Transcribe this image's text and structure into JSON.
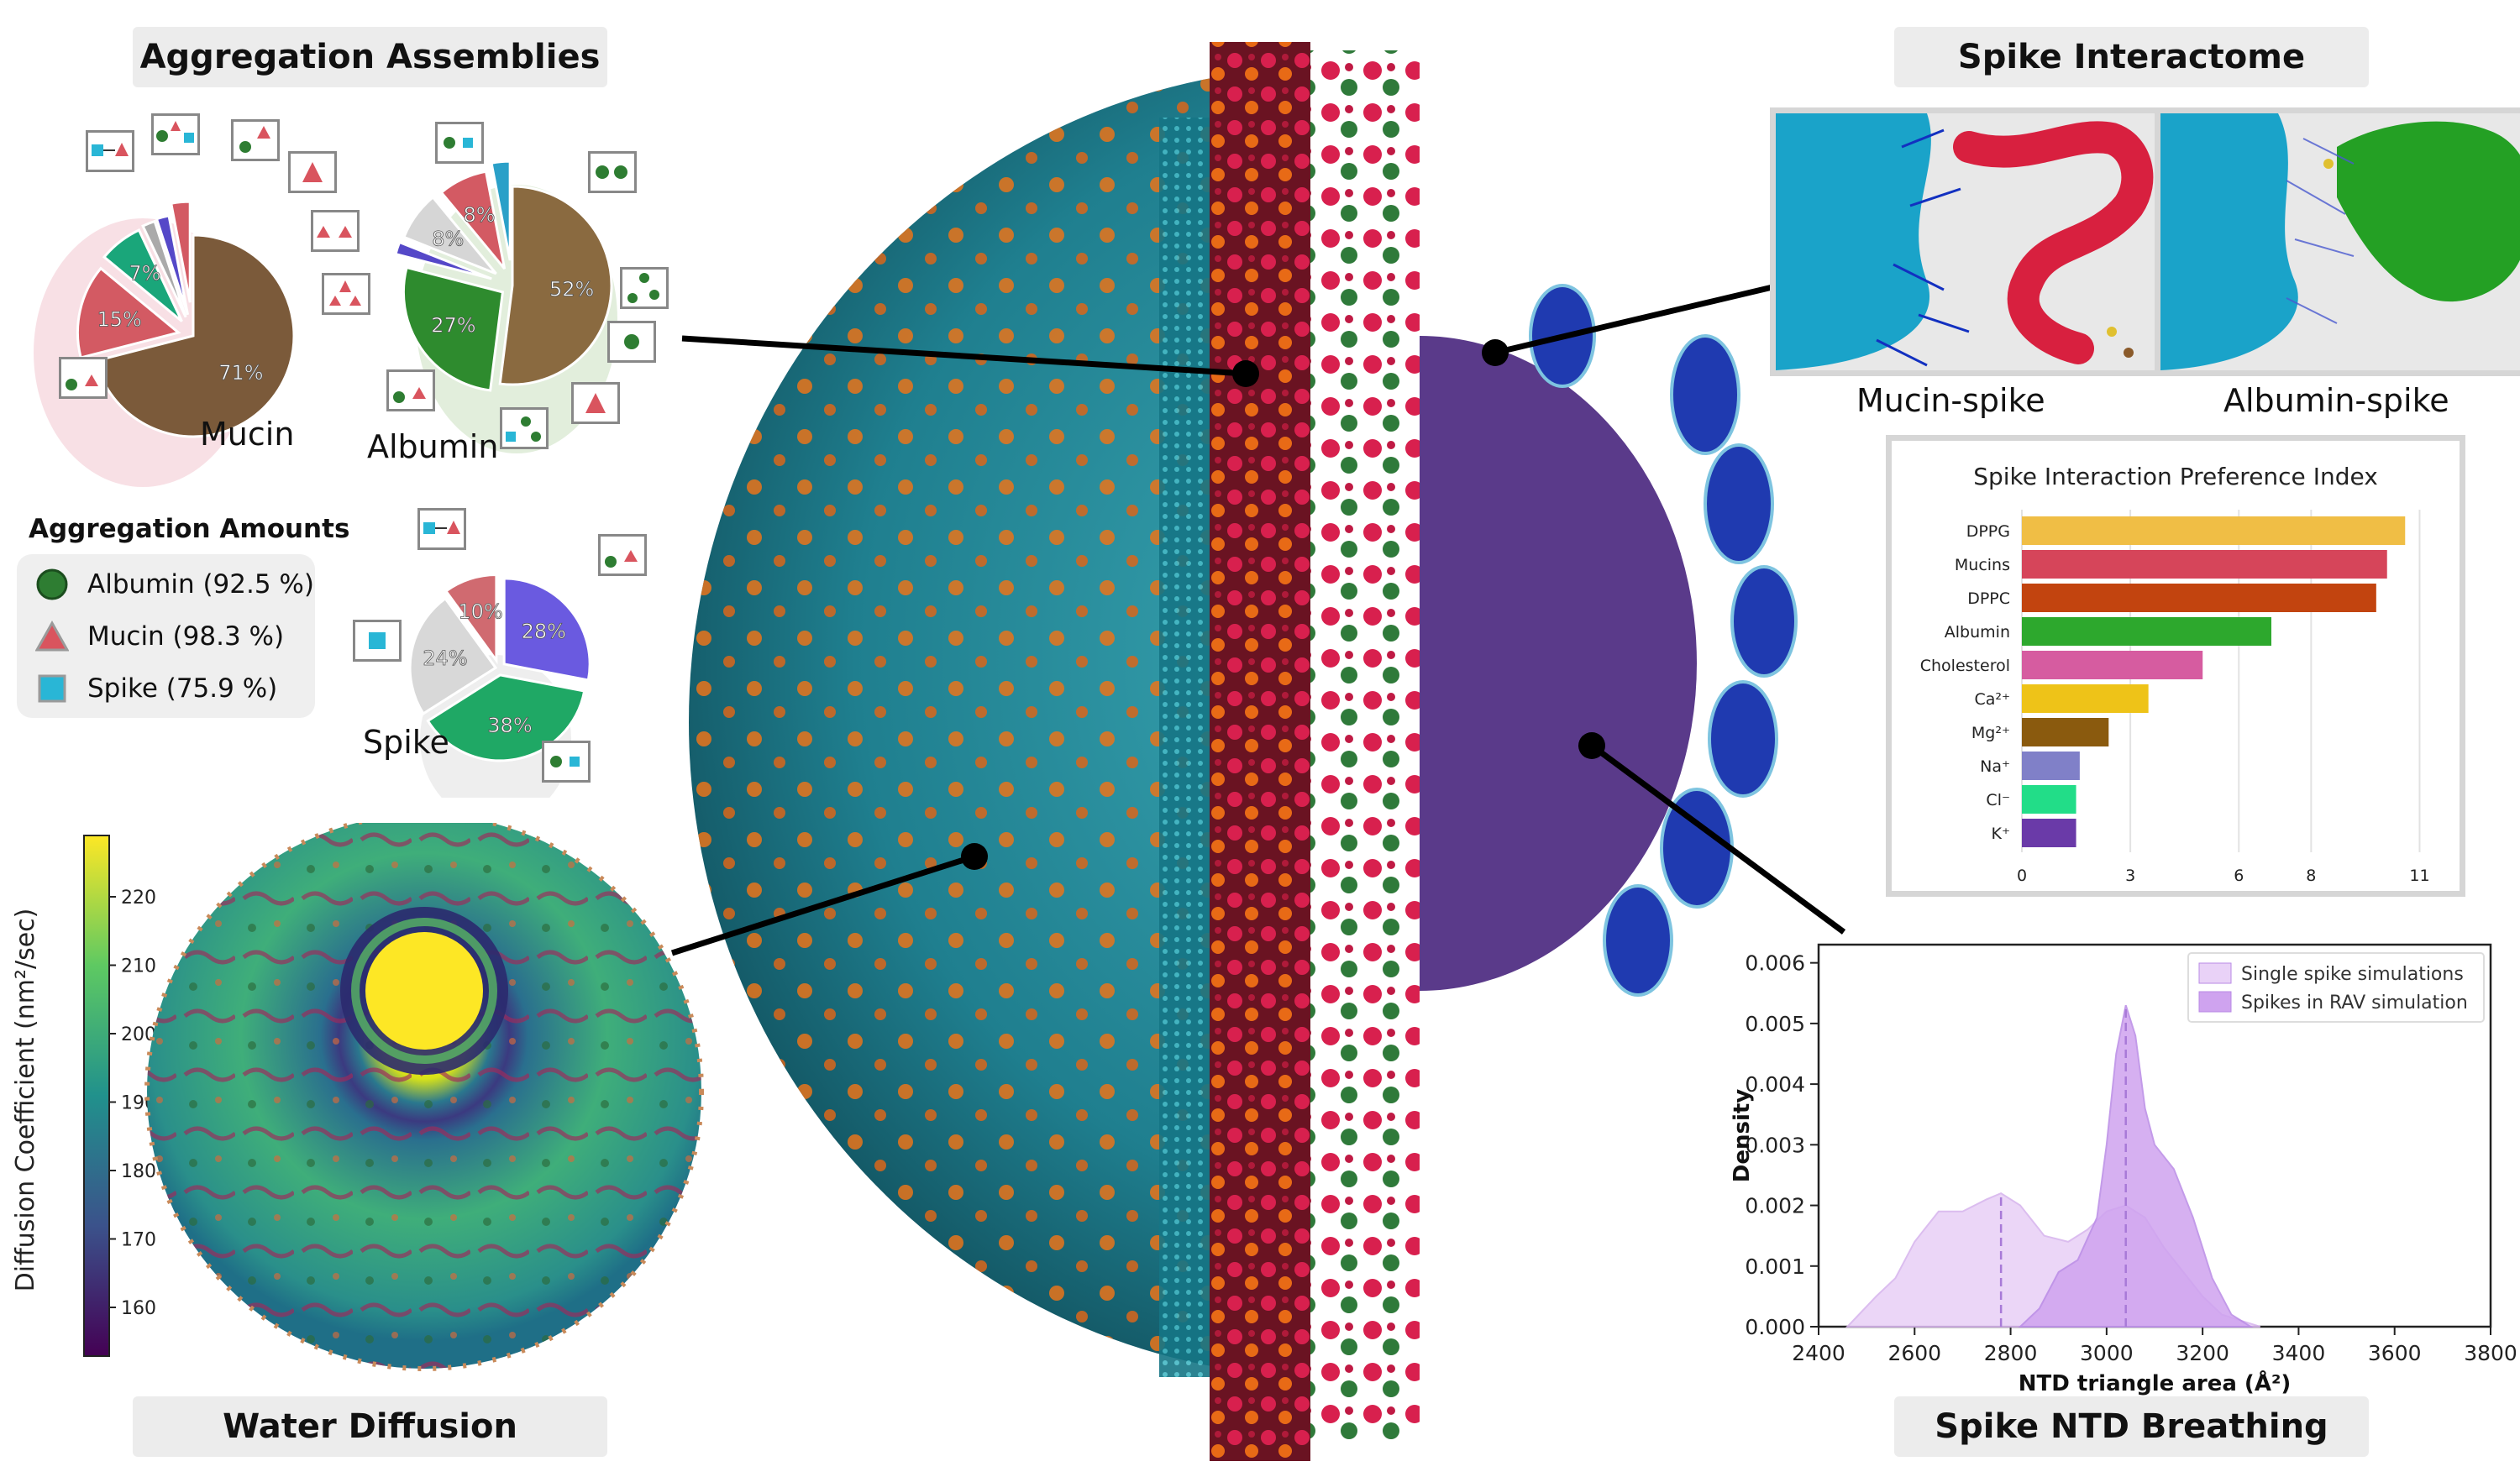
{
  "panels": {
    "aggregation": {
      "title": "Aggregation Assemblies",
      "mucin_label": "Mucin",
      "albumin_label": "Albumin",
      "spike_label": "Spike",
      "mucin_pie": [
        {
          "pct": "71%",
          "value": 71,
          "color": "#7b5a3a"
        },
        {
          "pct": "15%",
          "value": 15,
          "color": "#d35a63"
        },
        {
          "pct": "7%",
          "value": 7,
          "color": "#1aa67a"
        },
        {
          "pct": "",
          "value": 2,
          "color": "#aaaaaa"
        },
        {
          "pct": "",
          "value": 2,
          "color": "#5548c8"
        },
        {
          "pct": "",
          "value": 3,
          "color": "#d35a63"
        }
      ],
      "albumin_pie": [
        {
          "pct": "52%",
          "value": 52,
          "color": "#8a6a40"
        },
        {
          "pct": "27%",
          "value": 27,
          "color": "#2e8b2e"
        },
        {
          "pct": "",
          "value": 2,
          "color": "#5548c8"
        },
        {
          "pct": "8%",
          "value": 8,
          "color": "#d6d6d6"
        },
        {
          "pct": "8%",
          "value": 8,
          "color": "#d35a63"
        },
        {
          "pct": "",
          "value": 3,
          "color": "#2aa0c8"
        }
      ],
      "spike_pie": [
        {
          "pct": "28%",
          "value": 28,
          "color": "#6a5ae0"
        },
        {
          "pct": "38%",
          "value": 38,
          "color": "#1fa865"
        },
        {
          "pct": "24%",
          "value": 24,
          "color": "#d8d8d8"
        },
        {
          "pct": "10%",
          "value": 10,
          "color": "#d06a70"
        }
      ]
    },
    "amounts": {
      "title": "Aggregation Amounts",
      "items": [
        {
          "label": "Albumin (92.5 %)",
          "color": "#2e7d32",
          "shape": "circle"
        },
        {
          "label": "Mucin (98.3 %)",
          "color": "#d9545e",
          "shape": "triangle"
        },
        {
          "label": "Spike (75.9 %)",
          "color": "#29b6d6",
          "shape": "square"
        }
      ]
    },
    "interactome": {
      "title": "Spike Interactome",
      "left_caption": "Mucin-spike",
      "right_caption": "Albumin-spike"
    },
    "water": {
      "title": "Water Diffusion",
      "colorbar_label": "Diffusion Coefficient (nm²/sec)",
      "ticks": [
        "220",
        "210",
        "200",
        "190",
        "180",
        "170",
        "160"
      ]
    },
    "breathing": {
      "title": "Spike NTD Breathing"
    }
  },
  "chart_data": [
    {
      "type": "bar",
      "title": "Spike Interaction Preference Index",
      "orientation": "horizontal",
      "categories": [
        "DPPG",
        "Mucins",
        "DPPC",
        "Albumin",
        "Cholesterol",
        "Ca²⁺",
        "Mg²⁺",
        "Na⁺",
        "Cl⁻",
        "K⁺"
      ],
      "values": [
        10.6,
        10.1,
        9.8,
        6.9,
        5.0,
        3.5,
        2.4,
        1.6,
        1.5,
        1.5
      ],
      "colors": [
        "#f0be45",
        "#d6455a",
        "#c2440f",
        "#2da82d",
        "#d65ca0",
        "#eec318",
        "#8a5a0e",
        "#8080c8",
        "#22dd88",
        "#6a3aa8"
      ],
      "x_ticks": [
        "0",
        "3",
        "6",
        "8",
        "11"
      ],
      "xlim": [
        0,
        11.5
      ],
      "grid": true
    },
    {
      "type": "area",
      "xlabel": "NTD triangle area (Å²)",
      "ylabel": "Density",
      "xlim": [
        2400,
        3800
      ],
      "ylim": [
        0,
        0.0063
      ],
      "x_ticks": [
        "2400",
        "2600",
        "2800",
        "3000",
        "3200",
        "3400",
        "3600",
        "3800"
      ],
      "y_ticks": [
        "0.000",
        "0.001",
        "0.002",
        "0.003",
        "0.004",
        "0.005",
        "0.006"
      ],
      "legend_position": "top-right",
      "series": [
        {
          "name": "Single spike simulations",
          "color": "#e9d2f7",
          "mean": 2780,
          "x": [
            2460,
            2520,
            2560,
            2600,
            2650,
            2700,
            2750,
            2780,
            2820,
            2870,
            2920,
            2960,
            3000,
            3040,
            3080,
            3120,
            3160,
            3200,
            3240,
            3280,
            3320
          ],
          "y": [
            0.0,
            0.0005,
            0.0008,
            0.0014,
            0.0019,
            0.0019,
            0.0021,
            0.0022,
            0.002,
            0.0015,
            0.0014,
            0.0016,
            0.0019,
            0.002,
            0.0018,
            0.0013,
            0.0009,
            0.0005,
            0.0002,
            0.0001,
            0.0
          ]
        },
        {
          "name": "Spikes in RAV simulation",
          "color": "#cfa3ef",
          "mean": 3040,
          "x": [
            2820,
            2860,
            2900,
            2940,
            2980,
            3000,
            3020,
            3040,
            3060,
            3080,
            3100,
            3140,
            3180,
            3220,
            3260,
            3300
          ],
          "y": [
            0.0,
            0.0003,
            0.0009,
            0.0011,
            0.0018,
            0.003,
            0.0045,
            0.0053,
            0.0048,
            0.0036,
            0.003,
            0.0026,
            0.0018,
            0.0008,
            0.0002,
            0.0
          ]
        }
      ]
    }
  ]
}
